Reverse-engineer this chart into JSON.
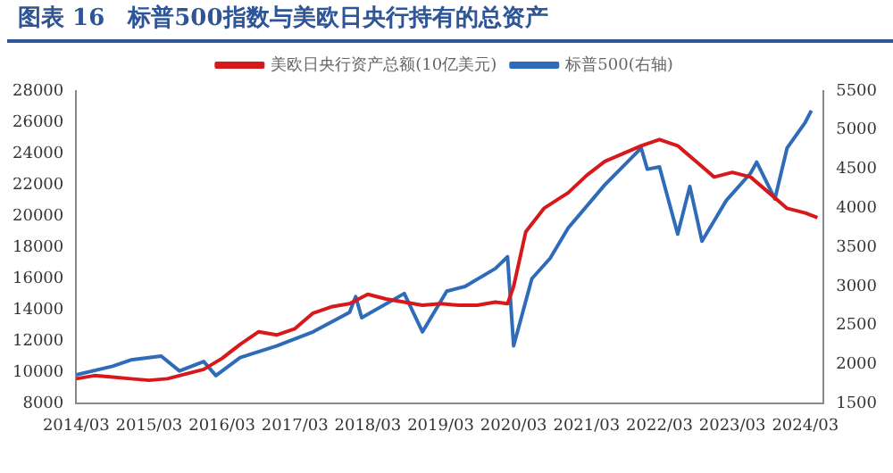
{
  "chart_data": {
    "type": "line",
    "title": "图表 16　标普500指数与美欧日央行持有的总资产",
    "xlim": [
      "2014-03",
      "2024-06"
    ],
    "xticks": [
      {
        "value": "2014-03",
        "label": "2014/03"
      },
      {
        "value": "2015-03",
        "label": "2015/03"
      },
      {
        "value": "2016-03",
        "label": "2016/03"
      },
      {
        "value": "2017-03",
        "label": "2017/03"
      },
      {
        "value": "2018-03",
        "label": "2018/03"
      },
      {
        "value": "2019-03",
        "label": "2019/03"
      },
      {
        "value": "2020-03",
        "label": "2020/03"
      },
      {
        "value": "2021-03",
        "label": "2021/03"
      },
      {
        "value": "2022-03",
        "label": "2022/03"
      },
      {
        "value": "2023-03",
        "label": "2023/03"
      },
      {
        "value": "2024-03",
        "label": "2024/03"
      }
    ],
    "ylim": [
      8000,
      28000
    ],
    "yticks": [
      8000,
      10000,
      12000,
      14000,
      16000,
      18000,
      20000,
      22000,
      24000,
      26000,
      28000
    ],
    "y2lim": [
      1500,
      5500
    ],
    "y2ticks": [
      1500,
      2000,
      2500,
      3000,
      3500,
      4000,
      4500,
      5000,
      5500
    ],
    "legend": "top",
    "grid": false,
    "marker": "none",
    "line_style": "solid",
    "series": [
      {
        "name": "美欧日央行资产总额(10亿美元)",
        "color": "#d7191c",
        "x": [
          "2014-03",
          "2014-06",
          "2014-09",
          "2014-12",
          "2015-03",
          "2015-06",
          "2015-09",
          "2015-12",
          "2016-03",
          "2016-06",
          "2016-09",
          "2016-12",
          "2017-03",
          "2017-06",
          "2017-09",
          "2017-12",
          "2018-03",
          "2018-06",
          "2018-09",
          "2018-12",
          "2019-03",
          "2019-06",
          "2019-09",
          "2019-12",
          "2020-02",
          "2020-03",
          "2020-05",
          "2020-08",
          "2020-12",
          "2021-03",
          "2021-06",
          "2021-09",
          "2021-12",
          "2022-03",
          "2022-06",
          "2022-09",
          "2022-12",
          "2023-03",
          "2023-06",
          "2023-09",
          "2023-12",
          "2024-03",
          "2024-05"
        ],
        "values": [
          9600,
          9800,
          9700,
          9600,
          9500,
          9600,
          9900,
          10200,
          10900,
          11800,
          12600,
          12400,
          12800,
          13800,
          14200,
          14400,
          15000,
          14700,
          14500,
          14300,
          14400,
          14300,
          14300,
          14500,
          14400,
          15500,
          19000,
          20500,
          21500,
          22600,
          23500,
          24000,
          24500,
          24900,
          24500,
          23500,
          22500,
          22800,
          22500,
          21500,
          20500,
          20200,
          19900
        ]
      },
      {
        "name": "标普500(右轴)",
        "color": "#2e6bb8",
        "axis": "y2",
        "x": [
          "2014-03",
          "2014-09",
          "2014-12",
          "2015-05",
          "2015-08",
          "2015-12",
          "2016-02",
          "2016-06",
          "2016-12",
          "2017-06",
          "2017-12",
          "2018-01",
          "2018-02",
          "2018-09",
          "2018-12",
          "2019-04",
          "2019-07",
          "2019-12",
          "2020-02",
          "2020-03",
          "2020-06",
          "2020-09",
          "2020-12",
          "2021-06",
          "2021-12",
          "2022-01",
          "2022-03",
          "2022-06",
          "2022-08",
          "2022-10",
          "2022-12",
          "2023-02",
          "2023-06",
          "2023-07",
          "2023-10",
          "2023-12",
          "2024-03",
          "2024-04"
        ],
        "values": [
          1870,
          1980,
          2060,
          2110,
          1920,
          2040,
          1860,
          2090,
          2240,
          2420,
          2670,
          2870,
          2600,
          2910,
          2420,
          2940,
          3000,
          3230,
          3380,
          2240,
          3100,
          3360,
          3750,
          4300,
          4770,
          4500,
          4530,
          3670,
          4280,
          3580,
          3840,
          4100,
          4450,
          4590,
          4120,
          4770,
          5100,
          5250
        ]
      }
    ]
  }
}
